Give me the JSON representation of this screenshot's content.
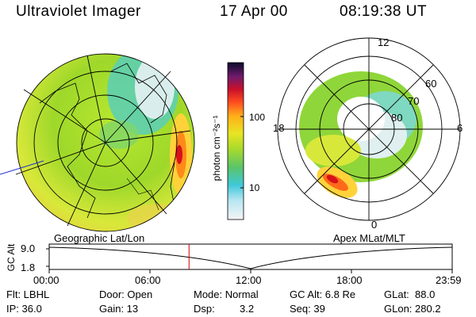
{
  "header": {
    "title": "Ultraviolet Imager",
    "date": "17 Apr 00",
    "time": "08:19:38 UT"
  },
  "colorbar": {
    "unit_label": "photon cm⁻²s⁻¹",
    "ticks": [
      "100",
      "10"
    ]
  },
  "polar_plot": {
    "mlt_labels": [
      "12",
      "18",
      "6",
      "0"
    ],
    "mlat_labels": [
      "60",
      "70",
      "80"
    ]
  },
  "timeline": {
    "left_title": "Geographic Lat/Lon",
    "right_title": "Apex MLat/MLT",
    "y_label": "GC Alt",
    "y_ticks": [
      "9.0",
      "1.8"
    ],
    "x_ticks": [
      "00:00",
      "06:00",
      "12:00",
      "18:00",
      "23:59"
    ],
    "current_time_fraction": 0.347
  },
  "info": {
    "flt": "Flt: LBHL",
    "ip": "IP: 36.0",
    "door": "Door: Open",
    "gain": "Gain: 13",
    "mode": "Mode: Normal",
    "dsp_label": "Dsp:",
    "dsp_value": "3.2",
    "gc_alt": "GC Alt: 6.8 Re",
    "seq": "Seq: 39",
    "glat": "GLat:  88.0",
    "glon": "GLon: 280.2"
  },
  "colors": {
    "cursor": "#d00000"
  }
}
